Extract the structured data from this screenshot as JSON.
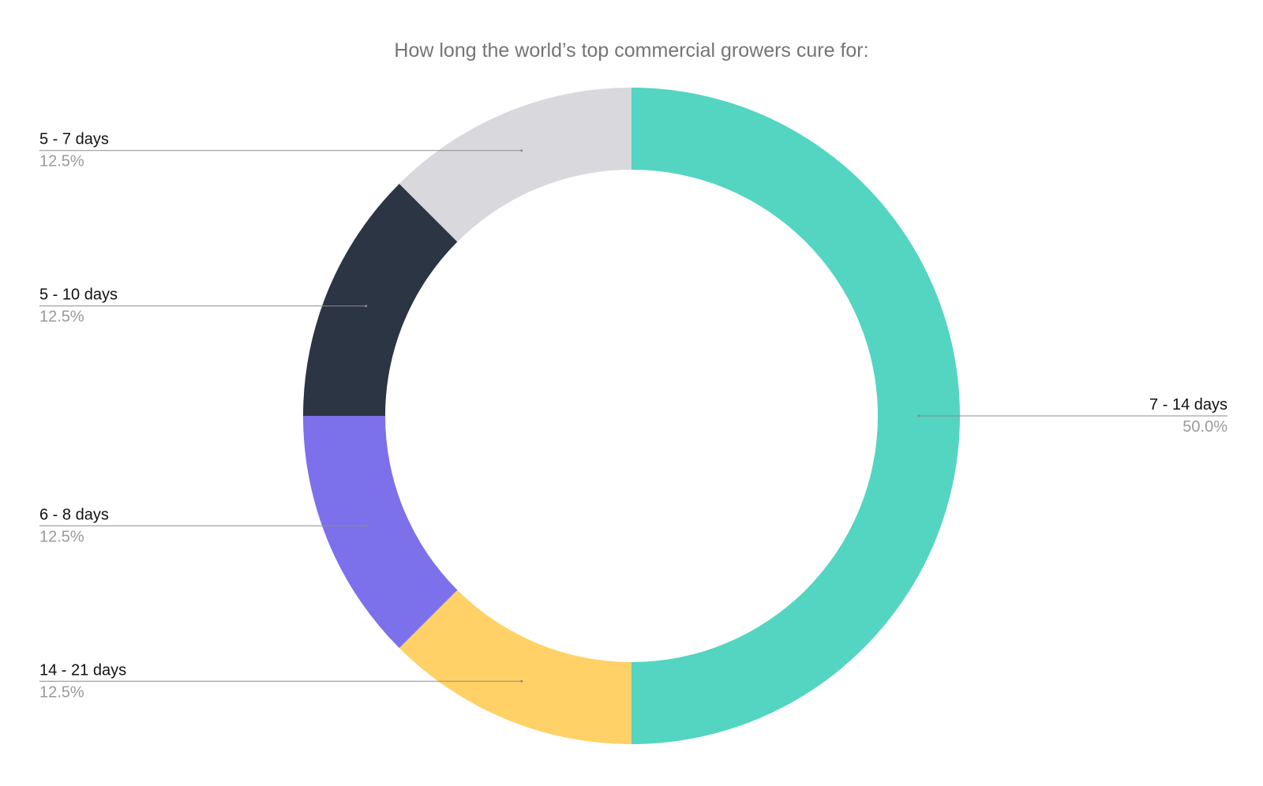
{
  "chart_data": {
    "type": "pie",
    "donut": true,
    "title": "How long the world’s top commercial growers cure for:",
    "slices": [
      {
        "label": "7 - 14 days",
        "value": 50.0,
        "percent_label": "50.0%",
        "color": "#53d5c1"
      },
      {
        "label": "14 - 21 days",
        "value": 12.5,
        "percent_label": "12.5%",
        "color": "#ffd166"
      },
      {
        "label": "6 - 8 days",
        "value": 12.5,
        "percent_label": "12.5%",
        "color": "#7c70eb"
      },
      {
        "label": "5 - 10 days",
        "value": 12.5,
        "percent_label": "12.5%",
        "color": "#2c3544"
      },
      {
        "label": "5 - 7 days",
        "value": 12.5,
        "percent_label": "12.5%",
        "color": "#d9d8dc"
      }
    ],
    "start_angle": "12 o'clock",
    "direction": "clockwise",
    "legend": "none"
  }
}
